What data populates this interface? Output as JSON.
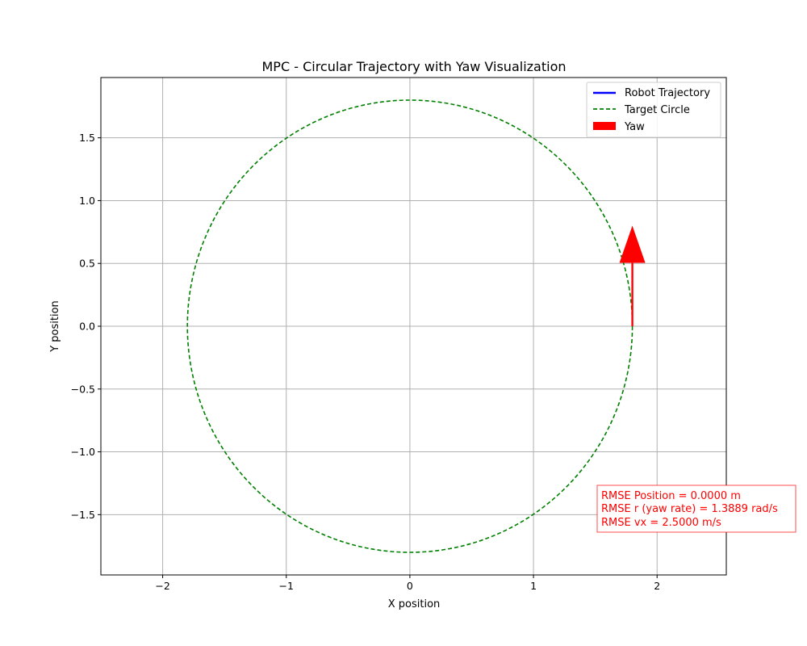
{
  "chart_data": {
    "type": "line",
    "title": "MPC - Circular Trajectory with Yaw Visualization",
    "xlabel": "X position",
    "ylabel": "Y position",
    "xlim": [
      -2.5,
      2.56
    ],
    "ylim": [
      -1.98,
      1.98
    ],
    "x_ticks": [
      -2,
      -1,
      0,
      1,
      2
    ],
    "x_tick_labels": [
      "−2",
      "−1",
      "0",
      "1",
      "2"
    ],
    "y_ticks": [
      -1.5,
      -1.0,
      -0.5,
      0.0,
      0.5,
      1.0,
      1.5
    ],
    "y_tick_labels": [
      "−1.5",
      "−1.0",
      "−0.5",
      "0.0",
      "0.5",
      "1.0",
      "1.5"
    ],
    "grid": true,
    "legend_position": "top-right",
    "series": [
      {
        "name": "Robot Trajectory",
        "style": "solid",
        "color": "#0000ff",
        "points": []
      },
      {
        "name": "Target Circle",
        "style": "dashed",
        "color": "#008000",
        "center": [
          0,
          0
        ],
        "radius": 1.8
      }
    ],
    "yaw_arrow": {
      "name": "Yaw",
      "color": "#ff0000",
      "start": [
        1.8,
        0.0
      ],
      "end": [
        1.8,
        0.8
      ]
    },
    "annotation": {
      "lines": [
        "RMSE Position = 0.0000 m",
        "RMSE r (yaw rate) = 1.3889 rad/s",
        "RMSE vx = 2.5000 m/s"
      ],
      "color": "#ff0000"
    }
  }
}
